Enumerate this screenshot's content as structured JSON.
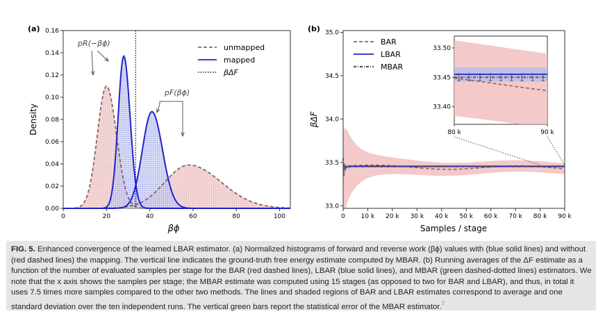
{
  "panel_a": {
    "label": "(a)",
    "xlabel": "βϕ",
    "ylabel": "Density",
    "legend": {
      "unmapped": "unmapped",
      "mapped": "mapped",
      "deltaF": "βΔF"
    },
    "annotation_reverse": "pR(−βϕ)",
    "annotation_forward": "pF(βϕ)",
    "colors": {
      "unmapped": "#8b6363",
      "mapped": "#2222cc",
      "unmapped_fill": "#f2c8c8",
      "mapped_fill": "#c7cdf2"
    }
  },
  "panel_b": {
    "label": "(b)",
    "xlabel": "Samples / stage",
    "ylabel": "βΔF",
    "legend": {
      "bar": "BAR",
      "lbar": "LBAR",
      "mbar": "MBAR"
    },
    "colors": {
      "bar": "#8b6363",
      "lbar": "#2222cc",
      "mbar": "#555555",
      "bar_band": "#f2c0c0",
      "lbar_band": "#b5bdf0"
    },
    "inset": {
      "xticks": [
        "80 k",
        "90 k"
      ],
      "yticks": [
        "33.50",
        "33.45",
        "33.40"
      ],
      "ylim": [
        33.37,
        33.52
      ]
    }
  },
  "chart_data": [
    {
      "type": "area",
      "xlabel": "βϕ",
      "ylabel": "Density",
      "xlim": [
        0,
        105
      ],
      "ylim": [
        0,
        0.16
      ],
      "xticks": [
        0,
        20,
        40,
        60,
        80,
        100
      ],
      "yticks": [
        "0.00",
        "0.02",
        "0.04",
        "0.06",
        "0.08",
        "0.10",
        "0.12",
        "0.14",
        "0.16"
      ],
      "series": [
        {
          "name": "unmapped",
          "distribution": "reverse",
          "peak_x": 20,
          "peak_density": 0.11
        },
        {
          "name": "unmapped",
          "distribution": "forward",
          "peak_x": 58,
          "peak_density": 0.039
        },
        {
          "name": "mapped",
          "distribution": "reverse",
          "peak_x": 28,
          "peak_density": 0.137
        },
        {
          "name": "mapped",
          "distribution": "forward",
          "peak_x": 41,
          "peak_density": 0.087
        }
      ],
      "vline": {
        "name": "βΔF",
        "x": 33.5
      }
    },
    {
      "type": "line",
      "xlabel": "Samples / stage",
      "ylabel": "βΔF",
      "xlim": [
        0,
        90000
      ],
      "ylim": [
        32.97,
        35.02
      ],
      "xticks": [
        "0",
        "10 k",
        "20 k",
        "30 k",
        "40 k",
        "50 k",
        "60 k",
        "70 k",
        "80 k",
        "90 k"
      ],
      "yticks": [
        "33.0",
        "33.5",
        "34.0",
        "34.5",
        "35.0"
      ],
      "series": [
        {
          "name": "BAR",
          "final_value": 33.438,
          "final_std": 0.06
        },
        {
          "name": "LBAR",
          "final_value": 33.455,
          "final_std": 0.012
        },
        {
          "name": "MBAR",
          "final_value": 33.45
        }
      ]
    }
  ],
  "caption": {
    "lead": "FIG. 5.",
    "text": "Enhanced convergence of the learned LBAR estimator. (a) Normalized histograms of forward and reverse work (βϕ) values with (blue solid lines) and without (red dashed lines) the mapping. The vertical line indicates the ground-truth free energy estimate computed by MBAR. (b) Running averages of the ΔF estimate as a function of the number of evaluated samples per stage for the BAR (red dashed lines), LBAR (blue solid lines), and MBAR (green dashed-dotted lines) estimators. We note that the x axis shows the samples per stage; the MBAR estimate was computed using 15 stages (as opposed to two for BAR and LBAR), and thus, in total it uses 7.5 times more samples compared to the other two methods. The lines and shaded regions of BAR and LBAR estimates correspond to average and one standard deviation over the ten independent runs. The vertical green bars report the statistical error of the MBAR estimator.",
    "ref": "7"
  }
}
